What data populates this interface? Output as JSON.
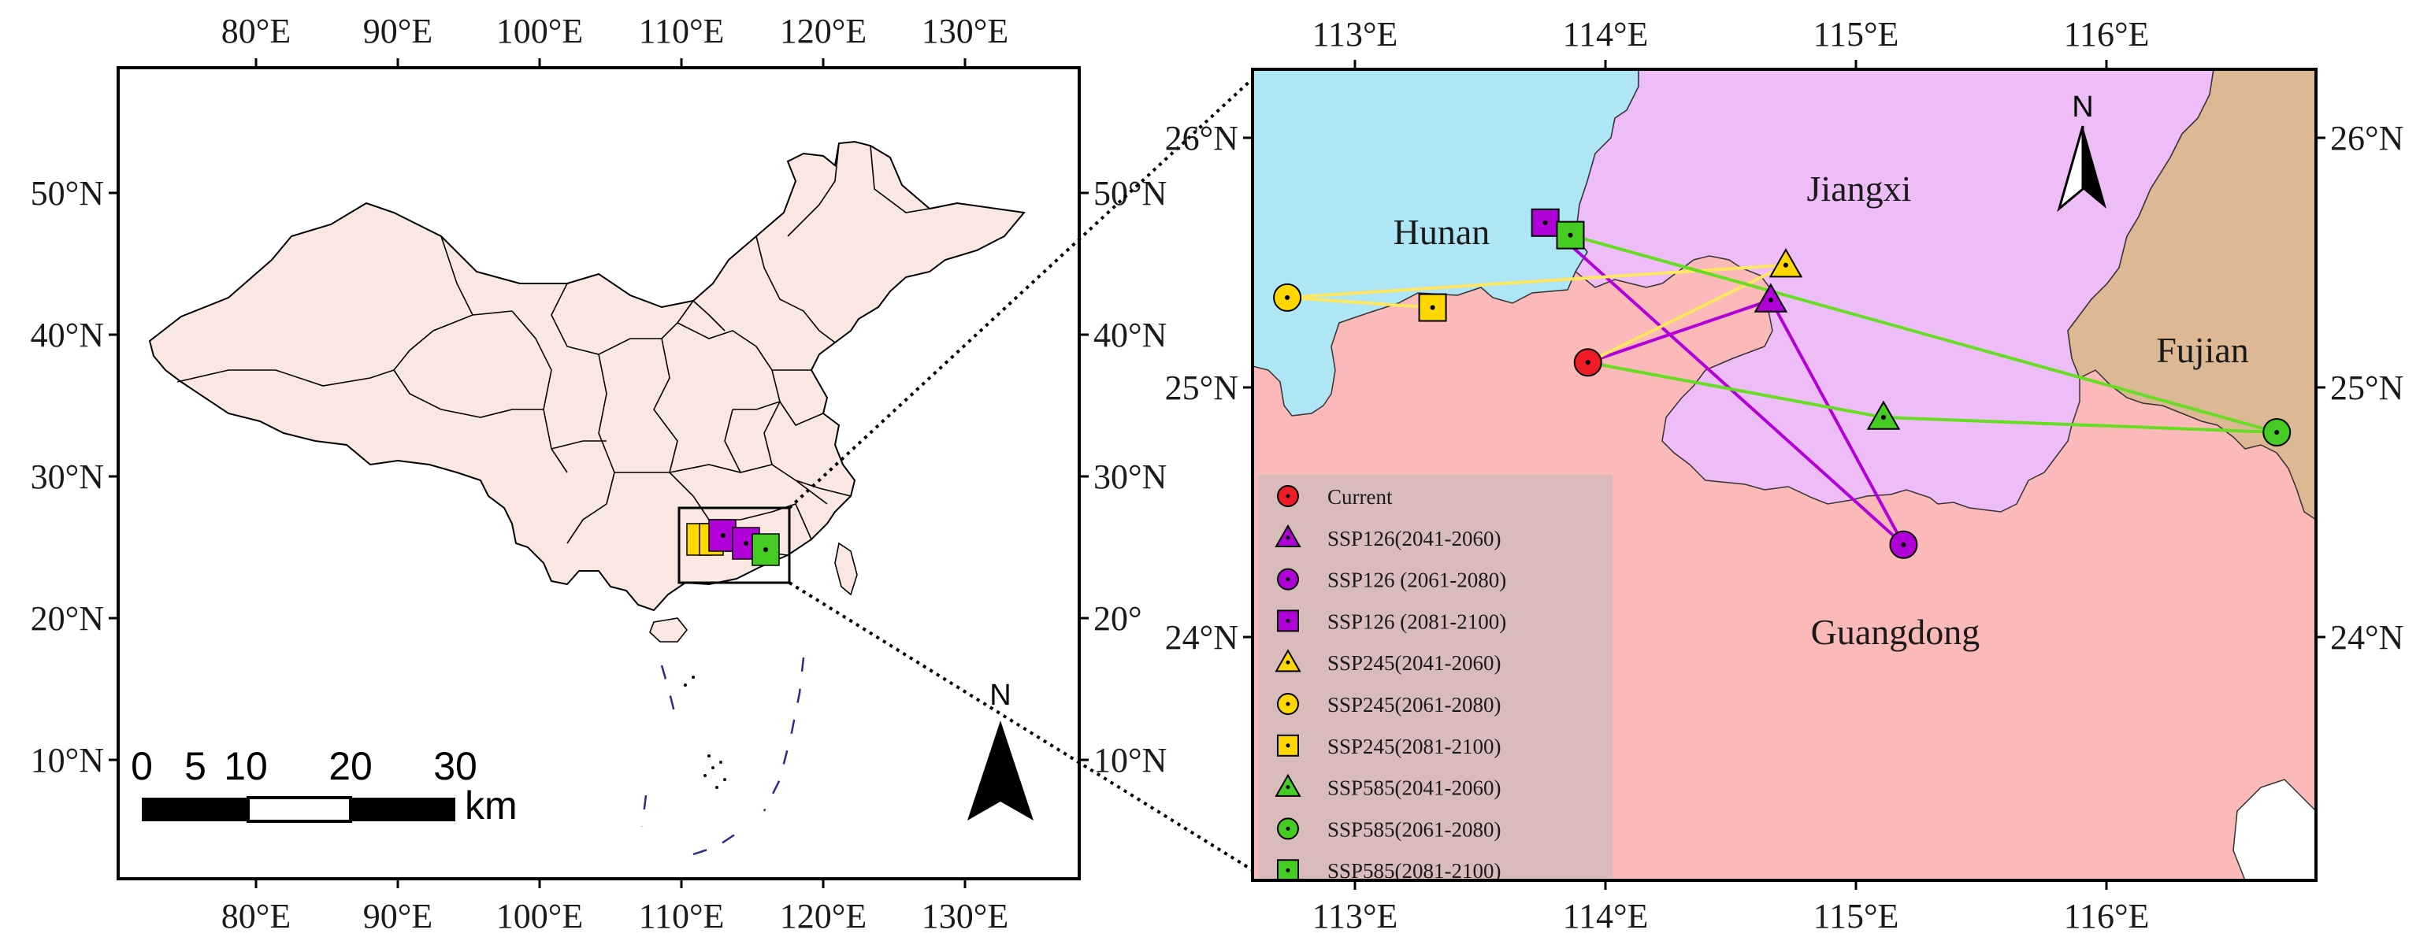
{
  "left_map": {
    "x_ticks": [
      "80°E",
      "90°E",
      "100°E",
      "110°E",
      "120°E",
      "130°E"
    ],
    "y_ticks_left": [
      "50°N",
      "40°N",
      "30°N",
      "20°N",
      "10°N"
    ],
    "y_ticks_right": [
      "50°N",
      "40°N",
      "30°N",
      "20°",
      "10°N"
    ],
    "scale_bar": {
      "numbers": [
        "0",
        "5",
        "10",
        "20",
        "30"
      ],
      "unit": "km"
    },
    "north_label": "N"
  },
  "right_map": {
    "x_ticks": [
      "113°E",
      "114°E",
      "115°E",
      "116°E"
    ],
    "y_ticks": [
      "26°N",
      "25°N",
      "24°N"
    ],
    "regions": {
      "hunan": "Hunan",
      "jiangxi": "Jiangxi",
      "fujian": "Fujian",
      "guangdong": "Guangdong"
    },
    "north_label": "N",
    "colors": {
      "hunan": "#aee6f6",
      "jiangxi": "#eebdf8",
      "fujian": "#dcb894",
      "guangdong": "#fbb9b9"
    }
  },
  "legend": {
    "items": [
      {
        "label": "Current",
        "shape": "circle",
        "color": "#ee1c25"
      },
      {
        "label": "SSP126(2041-2060)",
        "shape": "triangle",
        "color": "#b100d8"
      },
      {
        "label": "SSP126 (2061-2080)",
        "shape": "circle",
        "color": "#b100d8"
      },
      {
        "label": "SSP126 (2081-2100)",
        "shape": "square",
        "color": "#b100d8"
      },
      {
        "label": "SSP245(2041-2060)",
        "shape": "triangle",
        "color": "#ffd700"
      },
      {
        "label": "SSP245(2061-2080)",
        "shape": "circle",
        "color": "#ffd700"
      },
      {
        "label": "SSP245(2081-2100)",
        "shape": "square",
        "color": "#ffd700"
      },
      {
        "label": "SSP585(2041-2060)",
        "shape": "triangle",
        "color": "#44cc22"
      },
      {
        "label": "SSP585(2061-2080)",
        "shape": "circle",
        "color": "#44cc22"
      },
      {
        "label": "SSP585(2081-2100)",
        "shape": "square",
        "color": "#44cc22"
      }
    ]
  },
  "centroids": [
    {
      "series": "Current",
      "lon": 113.93,
      "lat": 25.1,
      "shape": "circle",
      "color": "#ee1c25"
    },
    {
      "series": "SSP126(2041-2060)",
      "lon": 114.66,
      "lat": 25.35,
      "shape": "triangle",
      "color": "#b100d8"
    },
    {
      "series": "SSP126 (2061-2080)",
      "lon": 115.19,
      "lat": 24.37,
      "shape": "circle",
      "color": "#b100d8"
    },
    {
      "series": "SSP126 (2081-2100)",
      "lon": 113.76,
      "lat": 25.66,
      "shape": "square",
      "color": "#b100d8"
    },
    {
      "series": "SSP245(2041-2060)",
      "lon": 114.72,
      "lat": 25.49,
      "shape": "triangle",
      "color": "#ffd700"
    },
    {
      "series": "SSP245(2061-2080)",
      "lon": 112.73,
      "lat": 25.36,
      "shape": "circle",
      "color": "#ffd700"
    },
    {
      "series": "SSP245(2081-2100)",
      "lon": 113.31,
      "lat": 25.32,
      "shape": "square",
      "color": "#ffd700"
    },
    {
      "series": "SSP585(2041-2060)",
      "lon": 115.11,
      "lat": 24.88,
      "shape": "triangle",
      "color": "#44cc22"
    },
    {
      "series": "SSP585(2061-2080)",
      "lon": 116.68,
      "lat": 24.82,
      "shape": "circle",
      "color": "#44cc22"
    },
    {
      "series": "SSP585(2081-2100)",
      "lon": 113.86,
      "lat": 25.61,
      "shape": "square",
      "color": "#44cc22"
    }
  ],
  "paths": [
    {
      "color": "#b100d8",
      "sequence": [
        "Current",
        "SSP126(2041-2060)",
        "SSP126 (2061-2080)",
        "SSP126 (2081-2100)"
      ]
    },
    {
      "color": "#ffe860",
      "sequence": [
        "Current",
        "SSP245(2041-2060)",
        "SSP245(2061-2080)",
        "SSP245(2081-2100)"
      ]
    },
    {
      "color": "#66dd22",
      "sequence": [
        "Current",
        "SSP585(2041-2060)",
        "SSP585(2061-2080)",
        "SSP585(2081-2100)"
      ]
    }
  ]
}
